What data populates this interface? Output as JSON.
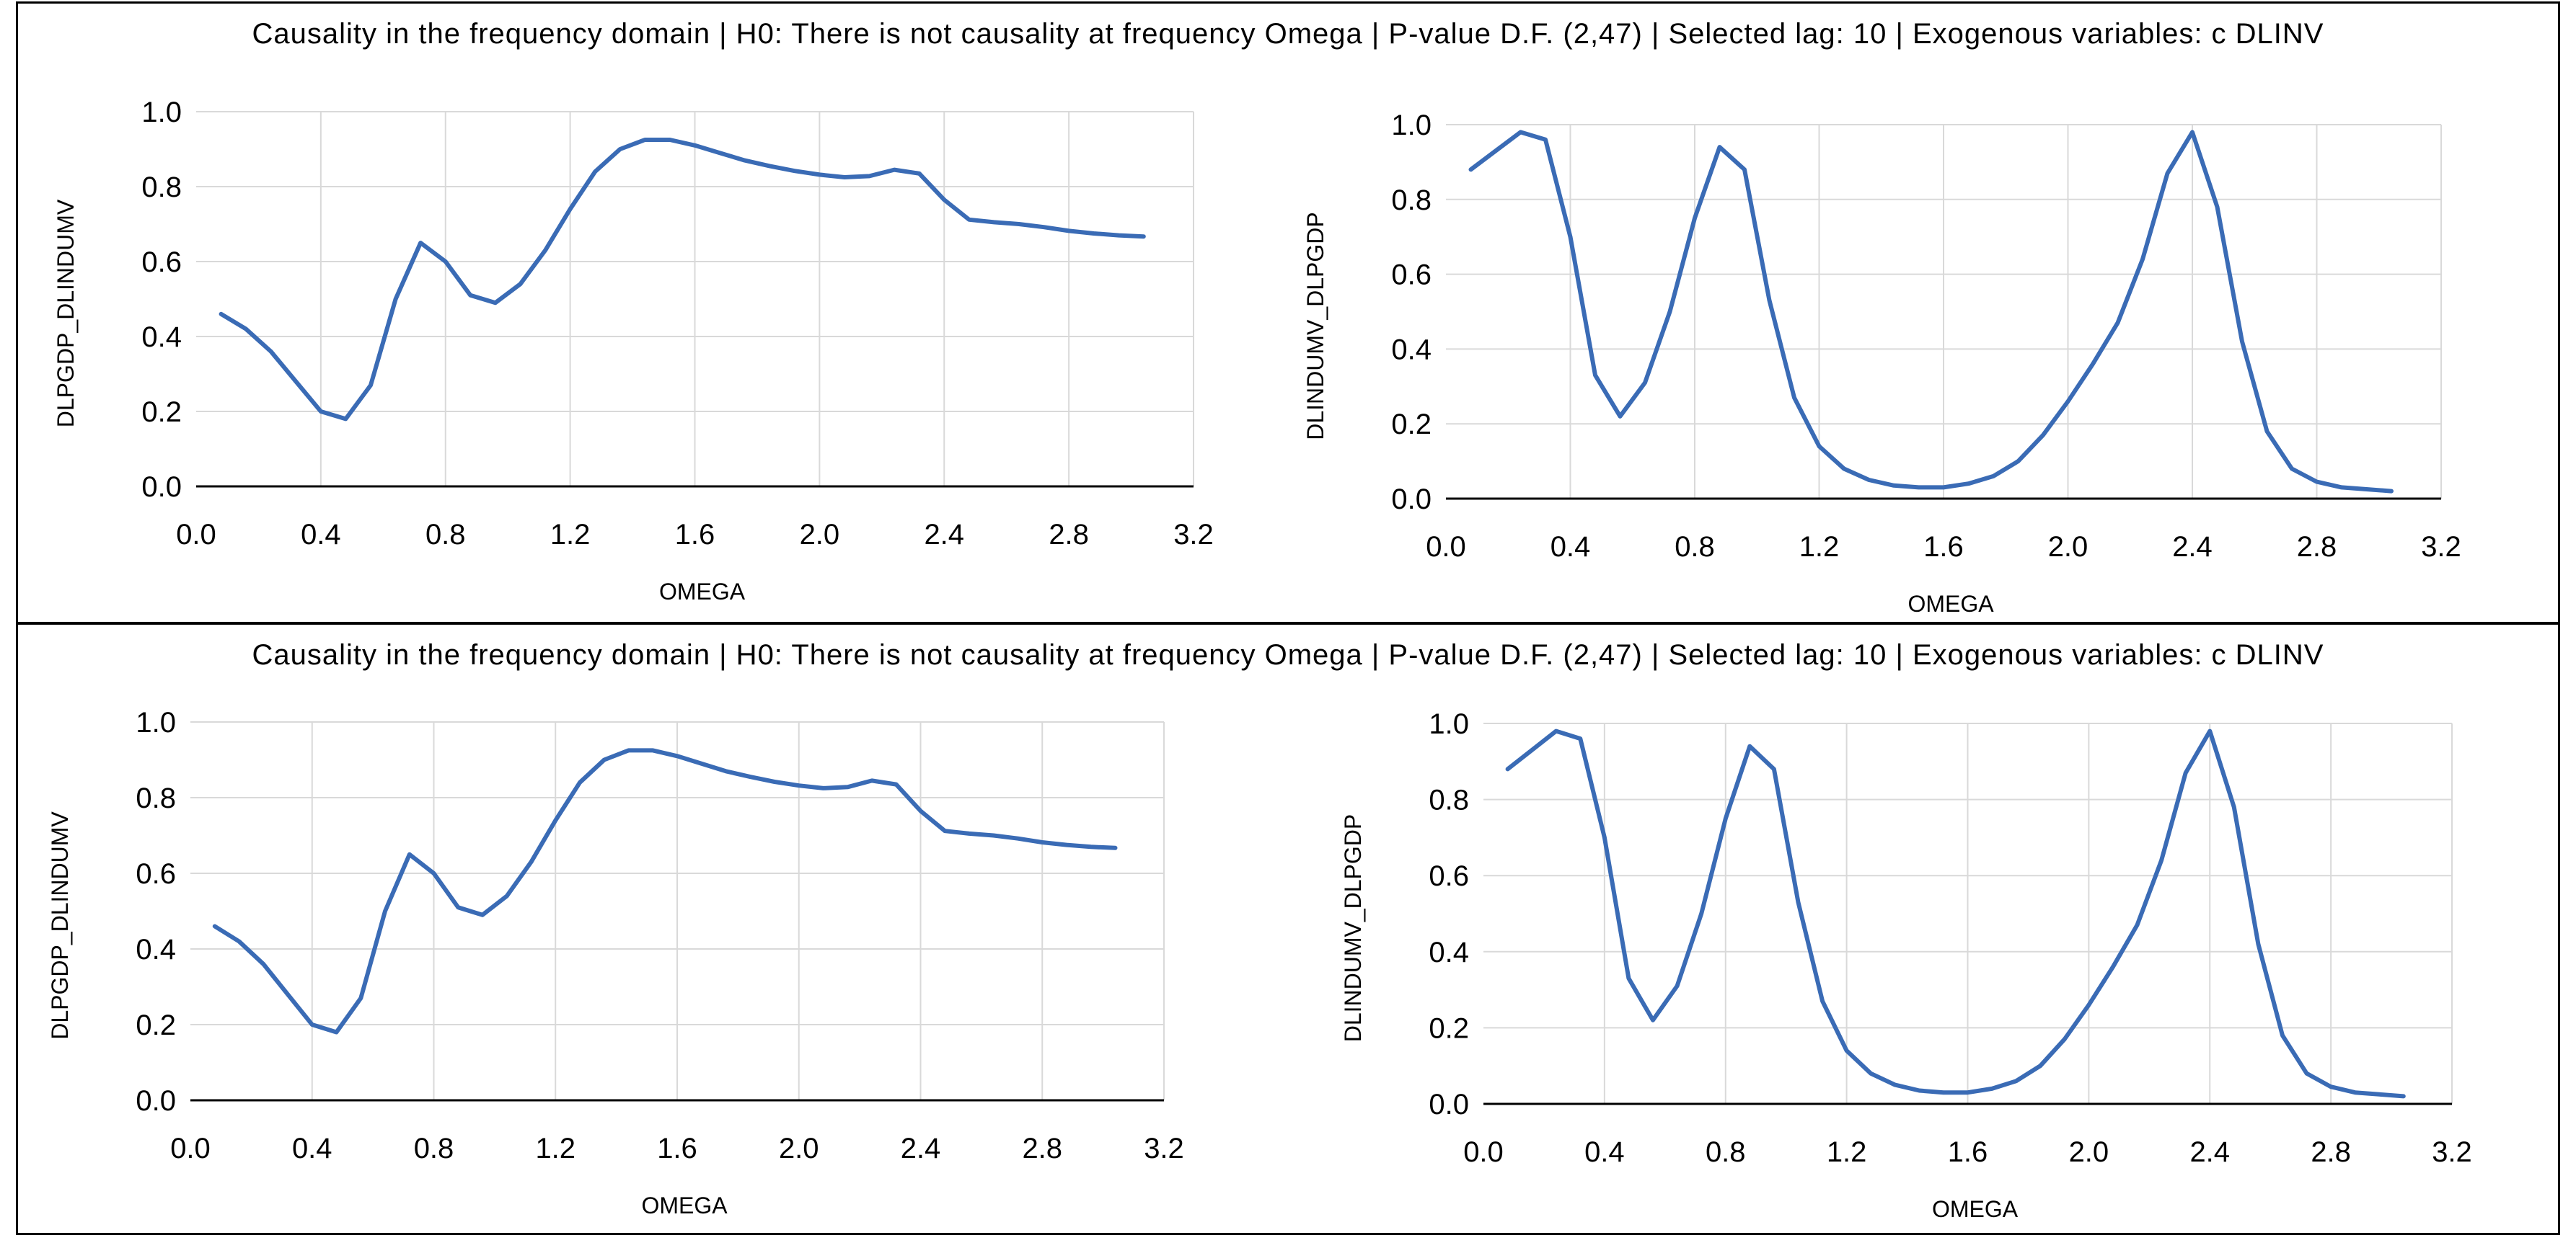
{
  "panels": [
    {
      "title": "Causality in the frequency domain | H0: There is not causality at frequency Omega | P-value D.F. (2,47) | Selected lag: 10 | Exogenous variables: c DLINV"
    },
    {
      "title": "Causality in the frequency domain | H0: There is not causality at frequency Omega | P-value D.F. (2,47) | Selected lag: 10 | Exogenous variables: c DLINV"
    }
  ],
  "colors": {
    "line": "#3a6bb5",
    "grid": "#d9d9d9",
    "axis": "#000000"
  },
  "chart_data": [
    {
      "type": "line",
      "xlabel": "OMEGA",
      "ylabel": "DLPGDP_DLINDUMV",
      "xlim": [
        0.0,
        3.2
      ],
      "ylim": [
        0.0,
        1.0
      ],
      "xticks": [
        "0.0",
        "0.4",
        "0.8",
        "1.2",
        "1.6",
        "2.0",
        "2.4",
        "2.8",
        "3.2"
      ],
      "yticks": [
        "0.0",
        "0.2",
        "0.4",
        "0.6",
        "0.8",
        "1.0"
      ],
      "x": [
        0.08,
        0.16,
        0.24,
        0.32,
        0.4,
        0.48,
        0.56,
        0.64,
        0.72,
        0.8,
        0.88,
        0.96,
        1.04,
        1.12,
        1.2,
        1.28,
        1.36,
        1.44,
        1.52,
        1.6,
        1.68,
        1.76,
        1.84,
        1.92,
        2.0,
        2.08,
        2.16,
        2.24,
        2.32,
        2.4,
        2.48,
        2.56,
        2.64,
        2.72,
        2.8,
        2.88,
        2.96,
        3.04
      ],
      "values": [
        0.46,
        0.42,
        0.36,
        0.28,
        0.2,
        0.18,
        0.27,
        0.5,
        0.65,
        0.6,
        0.51,
        0.49,
        0.54,
        0.63,
        0.74,
        0.84,
        0.9,
        0.925,
        0.925,
        0.91,
        0.89,
        0.87,
        0.855,
        0.842,
        0.832,
        0.825,
        0.828,
        0.845,
        0.835,
        0.765,
        0.712,
        0.705,
        0.7,
        0.692,
        0.682,
        0.675,
        0.67,
        0.667
      ]
    },
    {
      "type": "line",
      "xlabel": "OMEGA",
      "ylabel": "DLINDUMV_DLPGDP",
      "xlim": [
        0.0,
        3.2
      ],
      "ylim": [
        0.0,
        1.0
      ],
      "xticks": [
        "0.0",
        "0.4",
        "0.8",
        "1.2",
        "1.6",
        "2.0",
        "2.4",
        "2.8",
        "3.2"
      ],
      "yticks": [
        "0.0",
        "0.2",
        "0.4",
        "0.6",
        "0.8",
        "1.0"
      ],
      "x": [
        0.08,
        0.16,
        0.24,
        0.32,
        0.4,
        0.48,
        0.56,
        0.64,
        0.72,
        0.8,
        0.88,
        0.96,
        1.04,
        1.12,
        1.2,
        1.28,
        1.36,
        1.44,
        1.52,
        1.6,
        1.68,
        1.76,
        1.84,
        1.92,
        2.0,
        2.08,
        2.16,
        2.24,
        2.32,
        2.4,
        2.48,
        2.56,
        2.64,
        2.72,
        2.8,
        2.88,
        2.96,
        3.04
      ],
      "values": [
        0.88,
        0.93,
        0.98,
        0.96,
        0.7,
        0.33,
        0.22,
        0.31,
        0.5,
        0.75,
        0.94,
        0.88,
        0.53,
        0.27,
        0.14,
        0.08,
        0.05,
        0.035,
        0.03,
        0.03,
        0.04,
        0.06,
        0.1,
        0.17,
        0.26,
        0.36,
        0.47,
        0.64,
        0.87,
        0.98,
        0.78,
        0.42,
        0.18,
        0.08,
        0.045,
        0.03,
        0.025,
        0.02
      ]
    },
    {
      "type": "line",
      "xlabel": "OMEGA",
      "ylabel": "DLPGDP_DLINDUMV",
      "xlim": [
        0.0,
        3.2
      ],
      "ylim": [
        0.0,
        1.0
      ],
      "xticks": [
        "0.0",
        "0.4",
        "0.8",
        "1.2",
        "1.6",
        "2.0",
        "2.4",
        "2.8",
        "3.2"
      ],
      "yticks": [
        "0.0",
        "0.2",
        "0.4",
        "0.6",
        "0.8",
        "1.0"
      ],
      "x": [
        0.08,
        0.16,
        0.24,
        0.32,
        0.4,
        0.48,
        0.56,
        0.64,
        0.72,
        0.8,
        0.88,
        0.96,
        1.04,
        1.12,
        1.2,
        1.28,
        1.36,
        1.44,
        1.52,
        1.6,
        1.68,
        1.76,
        1.84,
        1.92,
        2.0,
        2.08,
        2.16,
        2.24,
        2.32,
        2.4,
        2.48,
        2.56,
        2.64,
        2.72,
        2.8,
        2.88,
        2.96,
        3.04
      ],
      "values": [
        0.46,
        0.42,
        0.36,
        0.28,
        0.2,
        0.18,
        0.27,
        0.5,
        0.65,
        0.6,
        0.51,
        0.49,
        0.54,
        0.63,
        0.74,
        0.84,
        0.9,
        0.925,
        0.925,
        0.91,
        0.89,
        0.87,
        0.855,
        0.842,
        0.832,
        0.825,
        0.828,
        0.845,
        0.835,
        0.765,
        0.712,
        0.705,
        0.7,
        0.692,
        0.682,
        0.675,
        0.67,
        0.667
      ]
    },
    {
      "type": "line",
      "xlabel": "OMEGA",
      "ylabel": "DLINDUMV_DLPGDP",
      "xlim": [
        0.0,
        3.2
      ],
      "ylim": [
        0.0,
        1.0
      ],
      "xticks": [
        "0.0",
        "0.4",
        "0.8",
        "1.2",
        "1.6",
        "2.0",
        "2.4",
        "2.8",
        "3.2"
      ],
      "yticks": [
        "0.0",
        "0.2",
        "0.4",
        "0.6",
        "0.8",
        "1.0"
      ],
      "x": [
        0.08,
        0.16,
        0.24,
        0.32,
        0.4,
        0.48,
        0.56,
        0.64,
        0.72,
        0.8,
        0.88,
        0.96,
        1.04,
        1.12,
        1.2,
        1.28,
        1.36,
        1.44,
        1.52,
        1.6,
        1.68,
        1.76,
        1.84,
        1.92,
        2.0,
        2.08,
        2.16,
        2.24,
        2.32,
        2.4,
        2.48,
        2.56,
        2.64,
        2.72,
        2.8,
        2.88,
        2.96,
        3.04
      ],
      "values": [
        0.88,
        0.93,
        0.98,
        0.96,
        0.7,
        0.33,
        0.22,
        0.31,
        0.5,
        0.75,
        0.94,
        0.88,
        0.53,
        0.27,
        0.14,
        0.08,
        0.05,
        0.035,
        0.03,
        0.03,
        0.04,
        0.06,
        0.1,
        0.17,
        0.26,
        0.36,
        0.47,
        0.64,
        0.87,
        0.98,
        0.78,
        0.42,
        0.18,
        0.08,
        0.045,
        0.03,
        0.025,
        0.02
      ]
    }
  ]
}
